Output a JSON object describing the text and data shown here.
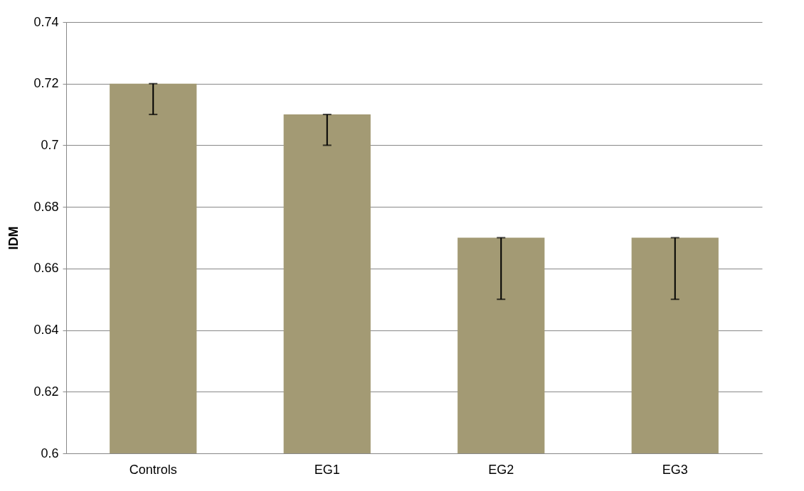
{
  "chart_data": {
    "type": "bar",
    "ylabel": "IDM",
    "categories": [
      "Controls",
      "EG1",
      "EG2",
      "EG3"
    ],
    "values": [
      0.72,
      0.71,
      0.67,
      0.67
    ],
    "errors": [
      [
        0.71,
        0.72
      ],
      [
        0.7,
        0.71
      ],
      [
        0.65,
        0.67
      ],
      [
        0.65,
        0.67
      ]
    ],
    "color": "#a39a74",
    "ylim": [
      0.6,
      0.74
    ],
    "yticks": [
      0.6,
      0.62,
      0.64,
      0.66,
      0.68,
      0.7,
      0.72,
      0.74
    ],
    "grid": "y"
  }
}
